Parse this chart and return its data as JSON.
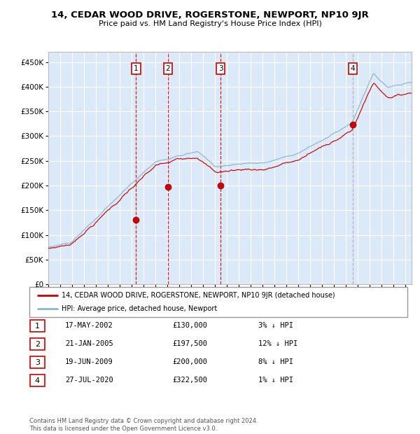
{
  "title": "14, CEDAR WOOD DRIVE, ROGERSTONE, NEWPORT, NP10 9JR",
  "subtitle": "Price paid vs. HM Land Registry's House Price Index (HPI)",
  "sales": [
    {
      "label": "1",
      "date": "17-MAY-2002",
      "price": 130000,
      "pct": "3%",
      "x_year": 2002.37
    },
    {
      "label": "2",
      "date": "21-JAN-2005",
      "price": 197500,
      "pct": "12%",
      "x_year": 2005.05
    },
    {
      "label": "3",
      "date": "19-JUN-2009",
      "price": 200000,
      "pct": "8%",
      "x_year": 2009.46
    },
    {
      "label": "4",
      "date": "27-JUL-2020",
      "price": 322500,
      "pct": "1%",
      "x_year": 2020.57
    }
  ],
  "legend_line1": "14, CEDAR WOOD DRIVE, ROGERSTONE, NEWPORT, NP10 9JR (detached house)",
  "legend_line2": "HPI: Average price, detached house, Newport",
  "footer": "Contains HM Land Registry data © Crown copyright and database right 2024.\nThis data is licensed under the Open Government Licence v3.0.",
  "ylim": [
    0,
    470000
  ],
  "yticks": [
    0,
    50000,
    100000,
    150000,
    200000,
    250000,
    300000,
    350000,
    400000,
    450000
  ],
  "xlim_start": 1995,
  "xlim_end": 2025.5,
  "bg_color": "#dce9f8",
  "grid_color": "#ffffff",
  "hpi_color": "#8ab4d4",
  "price_color": "#cc0000",
  "marker_color": "#cc0000",
  "vline_red": "#cc0000",
  "vline_gray": "#aaaaaa"
}
